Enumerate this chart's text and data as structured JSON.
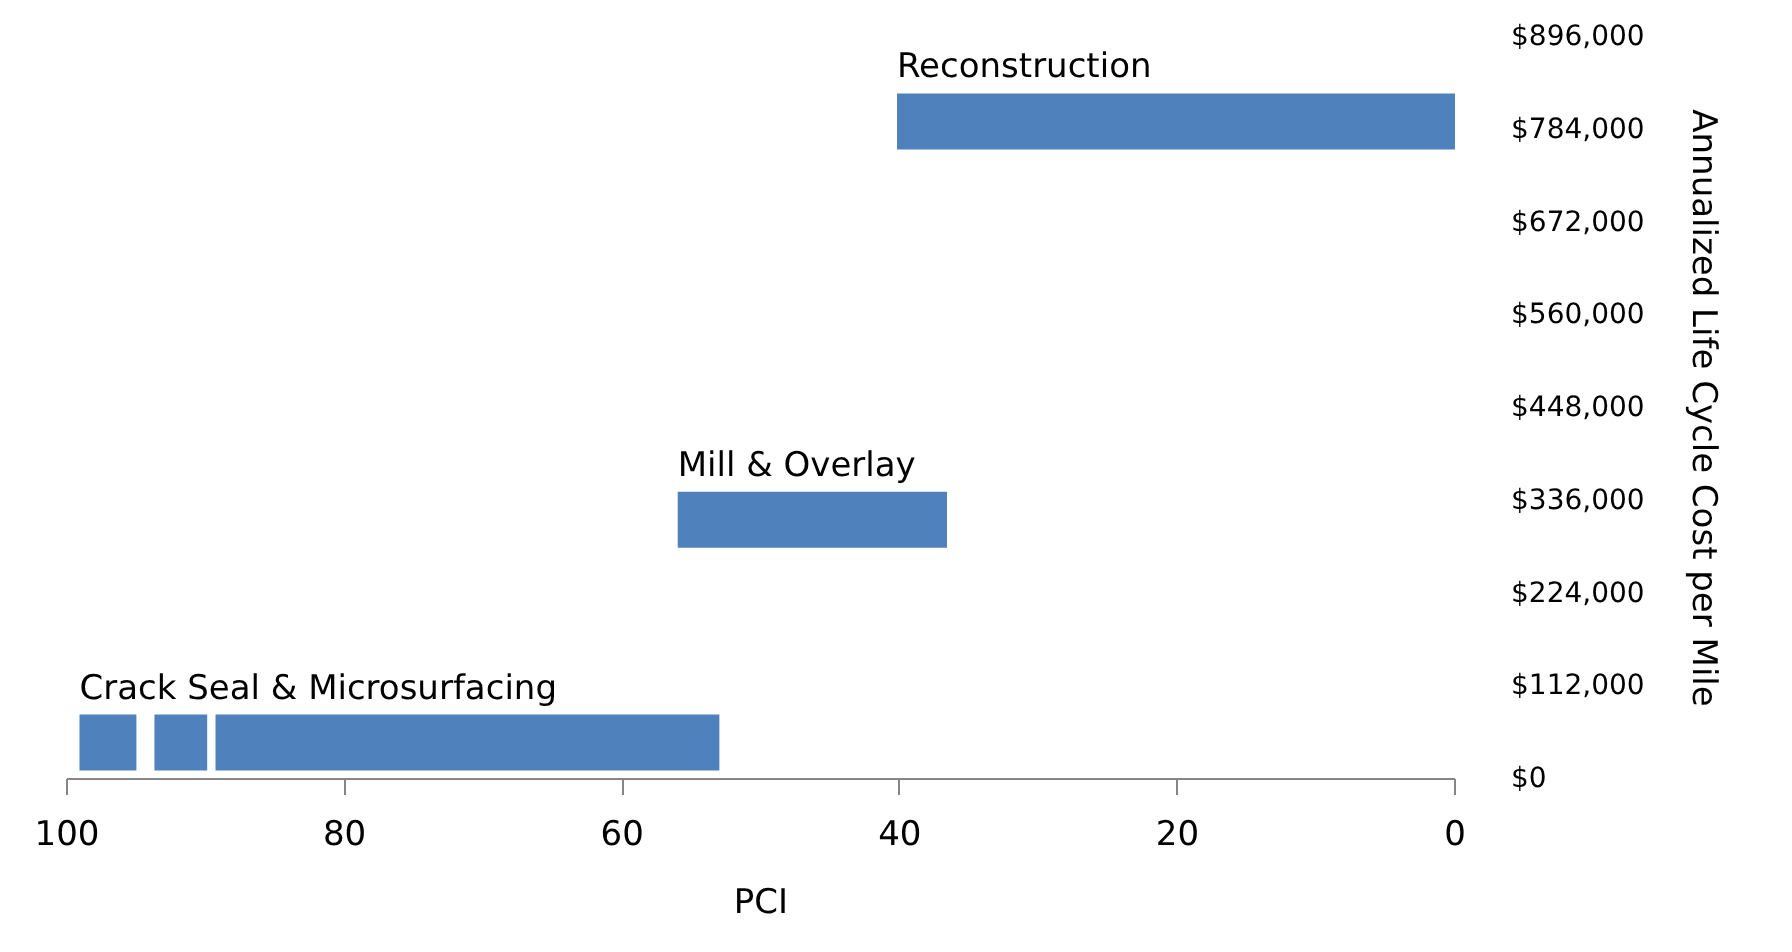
{
  "chart_data": {
    "type": "line",
    "xlabel": "PCI",
    "ylabel": "Annualized Life Cycle Cost per Mile",
    "xlim": [
      100,
      0
    ],
    "xticks": [
      100,
      80,
      60,
      40,
      20,
      0
    ],
    "ylim": [
      0,
      896000
    ],
    "yticks": [
      {
        "value": 0,
        "label": "$0"
      },
      {
        "value": 112000,
        "label": "$112,000"
      },
      {
        "value": 224000,
        "label": "$224,000"
      },
      {
        "value": 336000,
        "label": "$336,000"
      },
      {
        "value": 448000,
        "label": "$448,000"
      },
      {
        "value": 560000,
        "label": "$560,000"
      },
      {
        "value": 672000,
        "label": "$672,000"
      },
      {
        "value": 784000,
        "label": "$784,000"
      },
      {
        "value": 896000,
        "label": "$896,000"
      }
    ],
    "grid": false,
    "marker": "none",
    "line_style": "solid",
    "series": [
      {
        "name": "Crack Seal & Microsurfacing",
        "color": "#4f81bd",
        "x": [
          99.1,
          95.0,
          94.4,
          93.7,
          89.9,
          89.6,
          89.3,
          53.0
        ],
        "values": [
          44000,
          44000,
          null,
          44000,
          44000,
          null,
          44000,
          44000
        ]
      },
      {
        "name": "Mill & Overlay",
        "color": "#4f81bd",
        "x": [
          56.0,
          36.6
        ],
        "values": [
          313000,
          313000
        ]
      },
      {
        "name": "Reconstruction",
        "color": "#4f81bd",
        "x": [
          40.2,
          0
        ],
        "values": [
          794000,
          794000
        ]
      }
    ]
  }
}
